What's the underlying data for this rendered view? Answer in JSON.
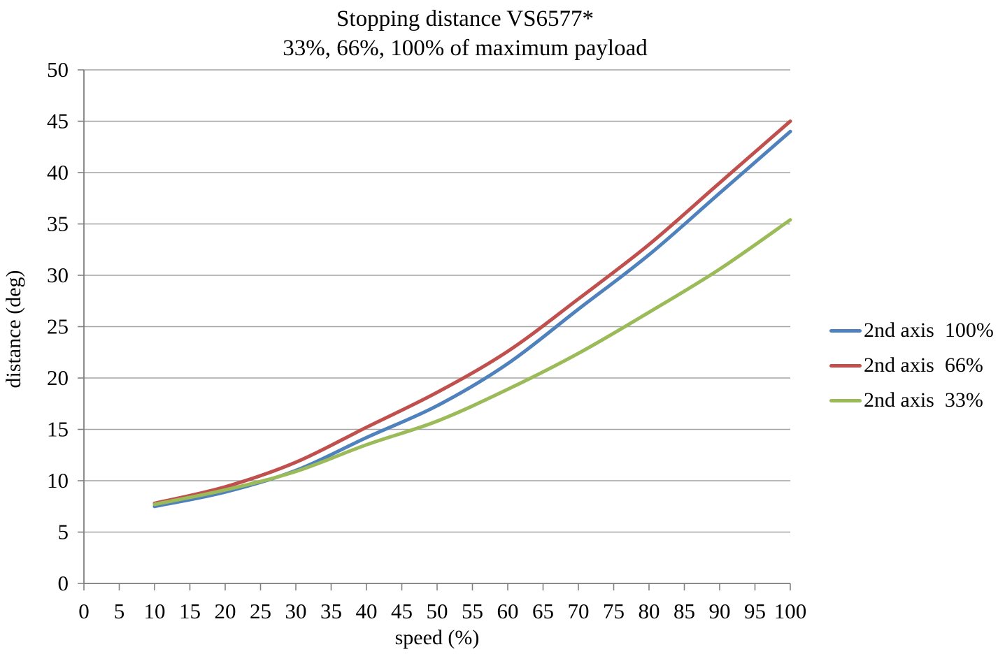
{
  "title": {
    "line1": "Stopping distance VS6577*",
    "line2": "33%, 66%, 100% of maximum payload"
  },
  "colors": {
    "series_blue": "#4F81BD",
    "series_red": "#C0504D",
    "series_green": "#9BBB59",
    "gridline": "#A3A3A3",
    "axis": "#808080",
    "text": "#000000",
    "background": "#FFFFFF"
  },
  "chart_data": {
    "type": "line",
    "title": "Stopping distance VS6577*",
    "subtitle": "33%, 66%, 100% of maximum payload",
    "xlabel": "speed (%)",
    "ylabel": "distance (deg)",
    "xlim": [
      0,
      100
    ],
    "ylim": [
      0,
      50
    ],
    "x_ticks": [
      0,
      5,
      10,
      15,
      20,
      25,
      30,
      35,
      40,
      45,
      50,
      55,
      60,
      65,
      70,
      75,
      80,
      85,
      90,
      95,
      100
    ],
    "y_ticks": [
      0,
      5,
      10,
      15,
      20,
      25,
      30,
      35,
      40,
      45,
      50
    ],
    "grid": "horizontal",
    "legend_position": "right",
    "x": [
      10,
      20,
      30,
      40,
      50,
      60,
      70,
      80,
      90,
      100
    ],
    "series": [
      {
        "name": "2nd axis  100%",
        "color": "#4F81BD",
        "values": [
          7.5,
          8.9,
          11.0,
          14.2,
          17.3,
          21.4,
          26.7,
          32.0,
          38.0,
          44.0
        ]
      },
      {
        "name": "2nd axis  66%",
        "color": "#C0504D",
        "values": [
          7.8,
          9.4,
          11.8,
          15.2,
          18.6,
          22.6,
          27.7,
          33.0,
          39.0,
          45.0
        ]
      },
      {
        "name": "2nd axis  33%",
        "color": "#9BBB59",
        "values": [
          7.7,
          9.1,
          10.9,
          13.5,
          15.8,
          18.9,
          22.4,
          26.4,
          30.6,
          35.4
        ]
      }
    ]
  }
}
